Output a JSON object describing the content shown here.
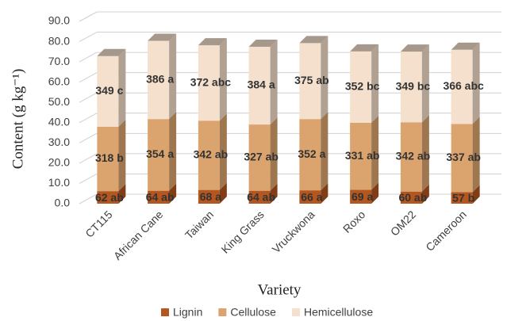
{
  "chart_data": {
    "type": "bar3d_stacked",
    "x_label": "Variety",
    "y_label": "Content (g kg⁻¹)",
    "categories": [
      "CT115",
      "African Cane",
      "Taiwan",
      "King Grass",
      "Vruckwona",
      "Roxo",
      "OM22",
      "Cameroon"
    ],
    "series": [
      {
        "name": "Lignin",
        "color": "#b3561f",
        "values": [
          6.2,
          6.4,
          6.8,
          6.4,
          6.6,
          6.9,
          6.0,
          5.7
        ],
        "value_labels": [
          "62 ab",
          "64 ab",
          "68 a",
          "64 ab",
          "66 a",
          "69 a",
          "60 ab",
          "57 b"
        ]
      },
      {
        "name": "Cellulose",
        "color": "#dba46f",
        "values": [
          31.8,
          35.4,
          34.2,
          32.7,
          35.2,
          33.1,
          34.2,
          33.7
        ],
        "value_labels": [
          "318 b",
          "354 a",
          "342 ab",
          "327 ab",
          "352 a",
          "331 ab",
          "342 ab",
          "337 ab"
        ]
      },
      {
        "name": "Hemicellulose",
        "color": "#f4e0cc",
        "values": [
          34.9,
          38.6,
          37.2,
          38.4,
          37.5,
          35.2,
          34.9,
          36.6
        ],
        "value_labels": [
          "349 c",
          "386 a",
          "372 abc",
          "384 a",
          "375 ab",
          "352 bc",
          "349 bc",
          "366 abc"
        ]
      }
    ],
    "ylim": [
      0,
      90
    ],
    "yticks": [
      {
        "value": 0,
        "label": "0.0"
      },
      {
        "value": 10,
        "label": "10.0"
      },
      {
        "value": 20,
        "label": "20.0"
      },
      {
        "value": 30,
        "label": "30.0"
      },
      {
        "value": 40,
        "label": "40.0"
      },
      {
        "value": 50,
        "label": "50.0"
      },
      {
        "value": 60,
        "label": "60.0"
      },
      {
        "value": 70,
        "label": "70.0"
      },
      {
        "value": 80,
        "label": "80.0"
      },
      {
        "value": 90,
        "label": "90.0"
      }
    ],
    "grid": true,
    "legend": "bottom"
  }
}
